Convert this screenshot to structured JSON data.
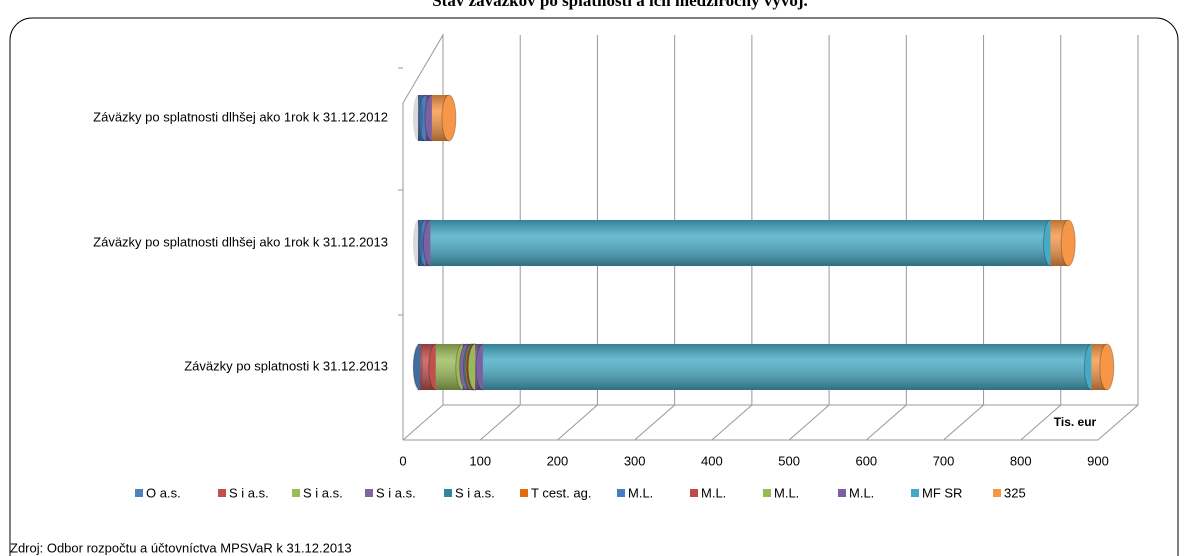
{
  "chart_data": {
    "type": "bar3d_stacked_horizontal",
    "title": "Stav záväzkov po splatnosti a ich medziročný vývoj.",
    "source": "Zdroj: Odbor rozpočtu a účtovníctva MPSVaR k 31.12.2013",
    "x_label": "Tis. eur",
    "categories": [
      "Záväzky po splatnosti k 31.12.2013",
      "Záväzky po splatnosti dlhšej ako 1rok k 31.12.2013",
      "Záväzky po splatnosti dlhšej ako 1rok k 31.12.2012"
    ],
    "series": [
      {
        "name": "O a.s.",
        "color": "#4f81bd",
        "values": [
          3,
          0,
          0
        ]
      },
      {
        "name": "S i a.s.",
        "color": "#c0504d",
        "values": [
          20,
          0,
          0
        ]
      },
      {
        "name": "S i a.s.",
        "color": "#9bbb59",
        "values": [
          35,
          0,
          0
        ]
      },
      {
        "name": "S i a.s.",
        "color": "#8064a2",
        "values": [
          5,
          0,
          0
        ]
      },
      {
        "name": "S i a.s.",
        "color": "#31859c",
        "values": [
          5,
          0,
          0
        ]
      },
      {
        "name": "T cest. ag.",
        "color": "#e46c0a",
        "values": [
          2,
          0,
          0
        ]
      },
      {
        "name": "M.L.",
        "color": "#4a7ebb",
        "values": [
          2,
          10,
          10
        ]
      },
      {
        "name": "M.L.",
        "color": "#be4b48",
        "values": [
          1,
          0,
          0
        ]
      },
      {
        "name": "M.L.",
        "color": "#98b954",
        "values": [
          1,
          0,
          0
        ]
      },
      {
        "name": "M.L.",
        "color": "#7d60a0",
        "values": [
          10,
          6,
          8
        ]
      },
      {
        "name": "MF SR",
        "color": "#46aac5",
        "values": [
          788,
          803,
          0
        ]
      },
      {
        "name": "325",
        "color": "#f79646",
        "values": [
          20,
          23,
          22
        ]
      }
    ],
    "xlim": [
      0,
      900
    ],
    "xticks": [
      0,
      100,
      200,
      300,
      400,
      500,
      600,
      700,
      800,
      900
    ],
    "grid": true
  }
}
